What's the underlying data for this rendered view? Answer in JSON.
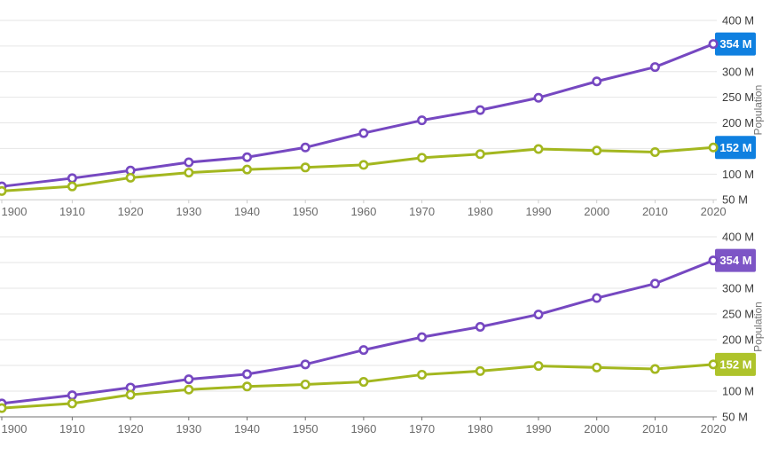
{
  "page": {
    "background": "#ffffff",
    "description": "Two stacked line charts of population by decade with final-value callout annotations on the right axis"
  },
  "colors": {
    "purple_series": "#7648c1",
    "green_series": "#a3b71f",
    "blue_callout": "#0f80e0",
    "purple_callout": "#7d55c6",
    "green_callout": "#aec32b",
    "gridline": "#e6e6e6",
    "axis_line_top_chart": "#cccccc",
    "axis_line_bottom_chart": "#707070",
    "y_label_text": "#3c3c3c",
    "x_label_text": "#6b6b6b",
    "axis_title_text": "#757575",
    "callout_text": "#ffffff",
    "marker_fill": "#ffffff"
  },
  "chart_data": [
    {
      "type": "line",
      "ylabel": "Population",
      "grid": "horizontal",
      "legend_position": "none",
      "ylim": [
        50,
        400
      ],
      "categories": [
        "1900",
        "1910",
        "1920",
        "1930",
        "1940",
        "1950",
        "1960",
        "1970",
        "1980",
        "1990",
        "2000",
        "2010",
        "2020"
      ],
      "y_axis_labels": [
        "50 M",
        "100 M",
        "150 M",
        "200 M",
        "250 M",
        "300 M",
        "350 M",
        "400 M"
      ],
      "series": [
        {
          "name": "purple",
          "color": "#7648c1",
          "values": [
            76,
            92,
            107,
            123,
            133,
            152,
            180,
            205,
            225,
            249,
            281,
            309,
            354
          ],
          "final_value_label": "354 M",
          "callout_color": "#7d55c6"
        },
        {
          "name": "green",
          "color": "#a3b71f",
          "values": [
            67,
            76,
            93,
            103,
            109,
            113,
            118,
            132,
            139,
            149,
            146,
            143,
            152
          ],
          "final_value_label": "152 M",
          "callout_color": "#aec32b"
        }
      ],
      "callout_style": {
        "mode": "uniform",
        "background": "#0f80e0",
        "text_color": "#ffffff"
      }
    },
    {
      "type": "line",
      "ylabel": "Population",
      "grid": "horizontal",
      "legend_position": "none",
      "ylim": [
        50,
        400
      ],
      "categories": [
        "1900",
        "1910",
        "1920",
        "1930",
        "1940",
        "1950",
        "1960",
        "1970",
        "1980",
        "1990",
        "2000",
        "2010",
        "2020"
      ],
      "y_axis_labels": [
        "50 M",
        "100 M",
        "150 M",
        "200 M",
        "250 M",
        "300 M",
        "350 M",
        "400 M"
      ],
      "series": [
        {
          "name": "purple",
          "color": "#7648c1",
          "values": [
            76,
            92,
            107,
            123,
            133,
            152,
            180,
            205,
            225,
            249,
            281,
            309,
            354
          ],
          "final_value_label": "354 M",
          "callout_color": "#7d55c6"
        },
        {
          "name": "green",
          "color": "#a3b71f",
          "values": [
            67,
            76,
            93,
            103,
            109,
            113,
            118,
            132,
            139,
            149,
            146,
            143,
            152
          ],
          "final_value_label": "152 M",
          "callout_color": "#aec32b"
        }
      ],
      "callout_style": {
        "mode": "series-color",
        "text_color": "#ffffff"
      }
    }
  ]
}
